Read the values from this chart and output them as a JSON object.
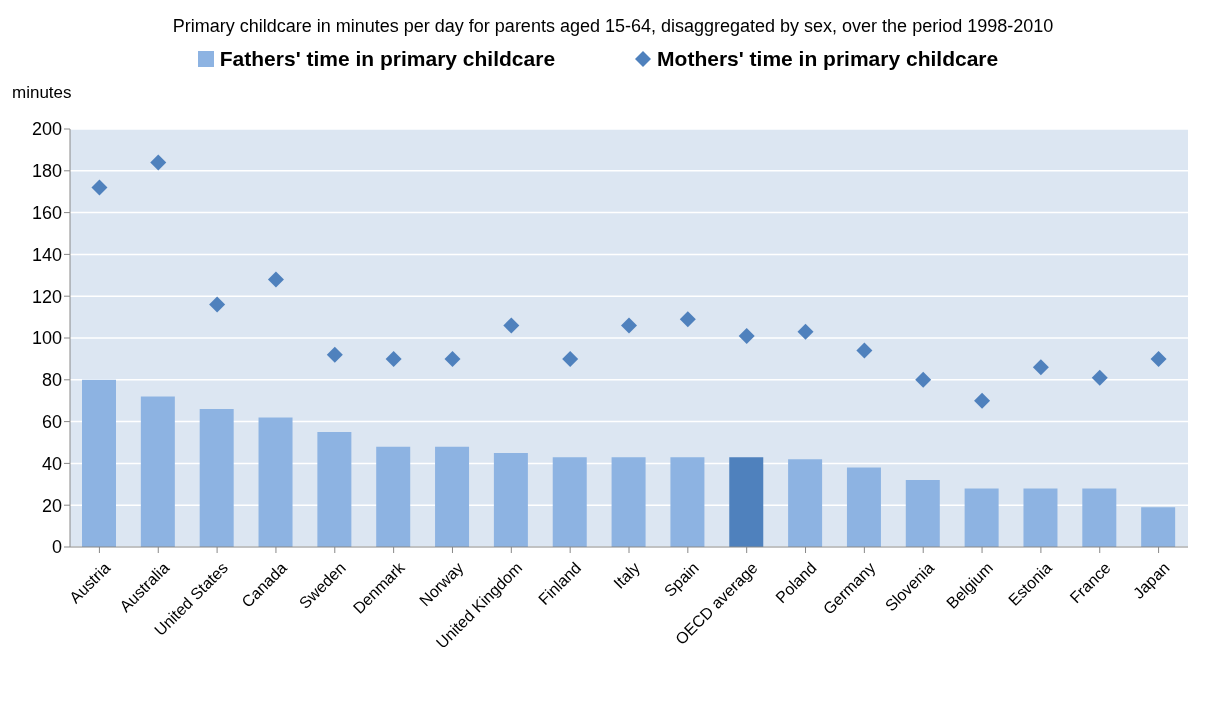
{
  "chart_data": {
    "type": "bar",
    "title": "Primary childcare in minutes per day for parents aged 15-64, disaggregated by sex, over the period 1998-2010",
    "ylabel": "minutes",
    "categories": [
      "Austria",
      "Australia",
      "United States",
      "Canada",
      "Sweden",
      "Denmark",
      "Norway",
      "United Kingdom",
      "Finland",
      "Italy",
      "Spain",
      "OECD average",
      "Poland",
      "Germany",
      "Slovenia",
      "Belgium",
      "Estonia",
      "France",
      "Japan"
    ],
    "series": [
      {
        "name": "Fathers' time in primary childcare",
        "color": "#8db3e2",
        "colors": [
          "#8db3e2",
          "#8db3e2",
          "#8db3e2",
          "#8db3e2",
          "#8db3e2",
          "#8db3e2",
          "#8db3e2",
          "#8db3e2",
          "#8db3e2",
          "#8db3e2",
          "#8db3e2",
          "#4f81bd",
          "#8db3e2",
          "#8db3e2",
          "#8db3e2",
          "#8db3e2",
          "#8db3e2",
          "#8db3e2",
          "#8db3e2"
        ],
        "values": [
          80,
          72,
          66,
          62,
          55,
          48,
          48,
          45,
          43,
          43,
          43,
          43,
          42,
          38,
          32,
          28,
          28,
          28,
          19
        ]
      },
      {
        "name": "Mothers' time in primary childcare",
        "type": "scatter",
        "marker": "diamond",
        "color": "#4f81bd",
        "values": [
          172,
          184,
          116,
          128,
          92,
          90,
          90,
          106,
          90,
          106,
          109,
          101,
          103,
          94,
          80,
          70,
          86,
          81,
          90
        ]
      }
    ],
    "ylim": [
      0,
      200
    ],
    "yticks": [
      0,
      20,
      40,
      60,
      80,
      100,
      120,
      140,
      160,
      180,
      200
    ],
    "grid": "y",
    "legend": "top"
  }
}
